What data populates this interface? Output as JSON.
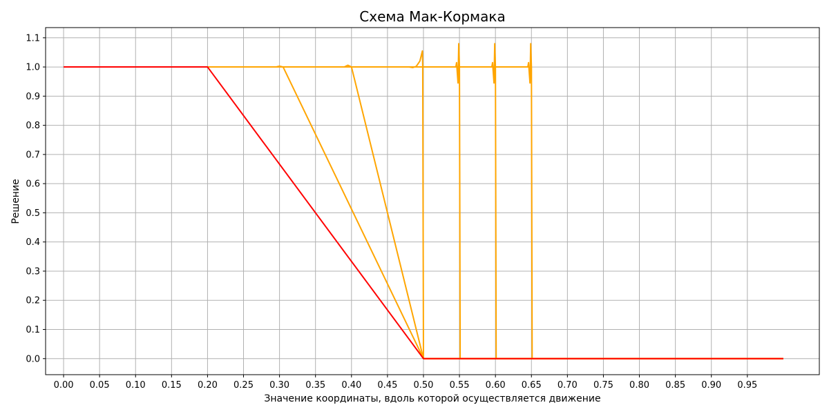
{
  "chart_data": {
    "type": "line",
    "title": "Схема Мак-Кормака",
    "xlabel": "Значение координаты, вдоль которой осуществляется движение",
    "ylabel": "Решение",
    "xlim": [
      -0.025,
      1.05
    ],
    "ylim": [
      -0.055,
      1.135
    ],
    "x_ticks": [
      "0.00",
      "0.05",
      "0.10",
      "0.15",
      "0.20",
      "0.25",
      "0.30",
      "0.35",
      "0.40",
      "0.45",
      "0.50",
      "0.55",
      "0.60",
      "0.65",
      "0.70",
      "0.75",
      "0.80",
      "0.85",
      "0.90",
      "0.95"
    ],
    "y_ticks": [
      "0.0",
      "0.1",
      "0.2",
      "0.3",
      "0.4",
      "0.5",
      "0.6",
      "0.7",
      "0.8",
      "0.9",
      "1.0",
      "1.1"
    ],
    "grid": true,
    "colors": {
      "numerical": "#ffa500",
      "initial": "#ff0000"
    },
    "series": [
      {
        "color": "#ffa500",
        "points": [
          [
            0.2,
            1.0
          ],
          [
            0.295,
            1.0
          ],
          [
            0.3,
            1.003
          ],
          [
            0.305,
            1.0
          ],
          [
            0.5,
            0.0
          ],
          [
            1.0,
            0.0
          ]
        ]
      },
      {
        "color": "#ffa500",
        "points": [
          [
            0.2,
            1.0
          ],
          [
            0.39,
            1.0
          ],
          [
            0.395,
            1.006
          ],
          [
            0.4,
            1.0
          ],
          [
            0.5,
            0.0
          ],
          [
            1.0,
            0.0
          ]
        ]
      },
      {
        "color": "#ffa500",
        "points": [
          [
            0.2,
            1.0
          ],
          [
            0.48,
            1.0
          ],
          [
            0.485,
            0.998
          ],
          [
            0.49,
            1.002
          ],
          [
            0.495,
            1.02
          ],
          [
            0.498,
            1.05
          ],
          [
            0.4985,
            1.055
          ],
          [
            0.499,
            1.0
          ],
          [
            0.5,
            0.0
          ],
          [
            1.0,
            0.0
          ]
        ]
      },
      {
        "color": "#ffa500",
        "points": [
          [
            0.2,
            1.0
          ],
          [
            0.545,
            1.0
          ],
          [
            0.546,
            1.015
          ],
          [
            0.547,
            0.98
          ],
          [
            0.548,
            0.945
          ],
          [
            0.549,
            1.08
          ],
          [
            0.55,
            1.0
          ],
          [
            0.551,
            0.0
          ],
          [
            1.0,
            0.0
          ]
        ]
      },
      {
        "color": "#ffa500",
        "points": [
          [
            0.2,
            1.0
          ],
          [
            0.595,
            1.0
          ],
          [
            0.596,
            1.015
          ],
          [
            0.597,
            0.98
          ],
          [
            0.598,
            0.945
          ],
          [
            0.599,
            1.08
          ],
          [
            0.6,
            1.0
          ],
          [
            0.601,
            0.0
          ],
          [
            1.0,
            0.0
          ]
        ]
      },
      {
        "color": "#ffa500",
        "points": [
          [
            0.2,
            1.0
          ],
          [
            0.645,
            1.0
          ],
          [
            0.646,
            1.015
          ],
          [
            0.647,
            0.98
          ],
          [
            0.648,
            0.945
          ],
          [
            0.649,
            1.08
          ],
          [
            0.65,
            1.0
          ],
          [
            0.651,
            0.0
          ],
          [
            1.0,
            0.0
          ]
        ]
      },
      {
        "color": "#ff0000",
        "points": [
          [
            0.0,
            1.0
          ],
          [
            0.2,
            1.0
          ],
          [
            0.5,
            0.0
          ],
          [
            1.0,
            0.0
          ]
        ]
      }
    ]
  }
}
